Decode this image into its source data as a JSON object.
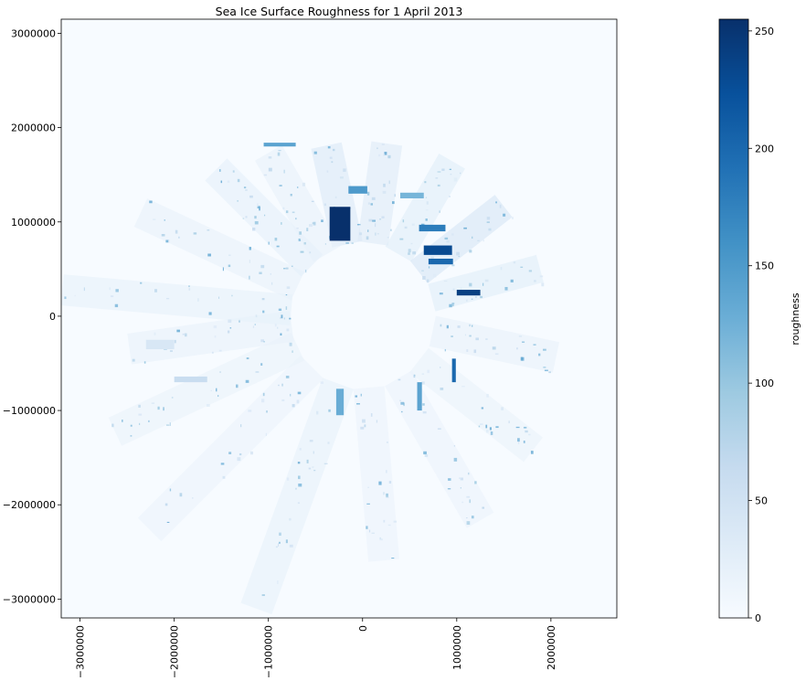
{
  "chart_data": {
    "type": "heatmap",
    "title": "Sea Ice Surface Roughness for 1 April 2013",
    "xlabel": "",
    "ylabel": "",
    "xlim": [
      -3200000,
      2700000
    ],
    "ylim": [
      -3200000,
      3150000
    ],
    "xticks": [
      {
        "value": -3000000,
        "label": "−3000000"
      },
      {
        "value": -2000000,
        "label": "−2000000"
      },
      {
        "value": -1000000,
        "label": "−1000000"
      },
      {
        "value": 0,
        "label": "0"
      },
      {
        "value": 1000000,
        "label": "1000000"
      },
      {
        "value": 2000000,
        "label": "2000000"
      }
    ],
    "yticks": [
      {
        "value": 3000000,
        "label": "3000000"
      },
      {
        "value": 2000000,
        "label": "2000000"
      },
      {
        "value": 1000000,
        "label": "1000000"
      },
      {
        "value": 0,
        "label": "0"
      },
      {
        "value": -1000000,
        "label": "−1000000"
      },
      {
        "value": -2000000,
        "label": "−2000000"
      },
      {
        "value": -3000000,
        "label": "−3000000"
      }
    ],
    "colorbar": {
      "label": "roughness",
      "range": [
        0,
        255
      ],
      "ticks": [
        {
          "value": 0,
          "label": "0"
        },
        {
          "value": 50,
          "label": "50"
        },
        {
          "value": 100,
          "label": "100"
        },
        {
          "value": 150,
          "label": "150"
        },
        {
          "value": 200,
          "label": "200"
        },
        {
          "value": 250,
          "label": "250"
        }
      ],
      "colormap": "Blues",
      "colors": [
        "#f7fbff",
        "#deebf7",
        "#c6dbef",
        "#9ecae1",
        "#6baed6",
        "#4292c6",
        "#2171b5",
        "#08519c",
        "#08306b"
      ]
    },
    "background_color": "#f7fbff",
    "pole_hole": {
      "center": [
        0,
        0
      ],
      "radius": 720000
    },
    "swaths": [
      {
        "angle_deg": 102,
        "r_inner": 780000,
        "r_outer": 1850000,
        "width": 330000,
        "roughness": 40
      },
      {
        "angle_deg": 82,
        "r_inner": 780000,
        "r_outer": 1850000,
        "width": 330000,
        "roughness": 35
      },
      {
        "angle_deg": 60,
        "r_inner": 760000,
        "r_outer": 1900000,
        "width": 320000,
        "roughness": 30
      },
      {
        "angle_deg": 38,
        "r_inner": 760000,
        "r_outer": 1900000,
        "width": 300000,
        "roughness": 45
      },
      {
        "angle_deg": 15,
        "r_inner": 760000,
        "r_outer": 1950000,
        "width": 300000,
        "roughness": 30
      },
      {
        "angle_deg": -12,
        "r_inner": 760000,
        "r_outer": 2100000,
        "width": 330000,
        "roughness": 20
      },
      {
        "angle_deg": -38,
        "r_inner": 760000,
        "r_outer": 2300000,
        "width": 330000,
        "roughness": 18
      },
      {
        "angle_deg": -60,
        "r_inner": 760000,
        "r_outer": 2500000,
        "width": 330000,
        "roughness": 15
      },
      {
        "angle_deg": -85,
        "r_inner": 760000,
        "r_outer": 2600000,
        "width": 330000,
        "roughness": 15
      },
      {
        "angle_deg": -110,
        "r_inner": 760000,
        "r_outer": 3300000,
        "width": 350000,
        "roughness": 22
      },
      {
        "angle_deg": -135,
        "r_inner": 760000,
        "r_outer": 3200000,
        "width": 350000,
        "roughness": 15
      },
      {
        "angle_deg": -155,
        "r_inner": 760000,
        "r_outer": 2900000,
        "width": 330000,
        "roughness": 18
      },
      {
        "angle_deg": -172,
        "r_inner": 760000,
        "r_outer": 2500000,
        "width": 330000,
        "roughness": 20
      },
      {
        "angle_deg": 175,
        "r_inner": 760000,
        "r_outer": 3200000,
        "width": 330000,
        "roughness": 22
      },
      {
        "angle_deg": 155,
        "r_inner": 760000,
        "r_outer": 2600000,
        "width": 330000,
        "roughness": 20
      },
      {
        "angle_deg": 135,
        "r_inner": 760000,
        "r_outer": 2200000,
        "width": 330000,
        "roughness": 25
      },
      {
        "angle_deg": 120,
        "r_inner": 760000,
        "r_outer": 2000000,
        "width": 330000,
        "roughness": 20
      }
    ],
    "high_roughness_patches": [
      {
        "x": -350000,
        "y": 800000,
        "w": 220000,
        "h": 360000,
        "roughness": 255
      },
      {
        "x": 650000,
        "y": 650000,
        "w": 300000,
        "h": 100000,
        "roughness": 230
      },
      {
        "x": 700000,
        "y": 550000,
        "w": 260000,
        "h": 60000,
        "roughness": 200
      },
      {
        "x": 1000000,
        "y": 220000,
        "w": 250000,
        "h": 60000,
        "roughness": 240
      },
      {
        "x": 600000,
        "y": 900000,
        "w": 280000,
        "h": 70000,
        "roughness": 180
      },
      {
        "x": -150000,
        "y": 1300000,
        "w": 200000,
        "h": 80000,
        "roughness": 150
      },
      {
        "x": -1050000,
        "y": 1800000,
        "w": 340000,
        "h": 40000,
        "roughness": 140
      },
      {
        "x": 400000,
        "y": 1250000,
        "w": 250000,
        "h": 60000,
        "roughness": 120
      },
      {
        "x": -280000,
        "y": -1050000,
        "w": 80000,
        "h": 280000,
        "roughness": 130
      },
      {
        "x": 580000,
        "y": -1000000,
        "w": 50000,
        "h": 300000,
        "roughness": 140
      },
      {
        "x": 950000,
        "y": -700000,
        "w": 40000,
        "h": 250000,
        "roughness": 200
      },
      {
        "x": -2000000,
        "y": -700000,
        "w": 350000,
        "h": 60000,
        "roughness": 60
      },
      {
        "x": -2300000,
        "y": -350000,
        "w": 300000,
        "h": 100000,
        "roughness": 40
      }
    ]
  }
}
